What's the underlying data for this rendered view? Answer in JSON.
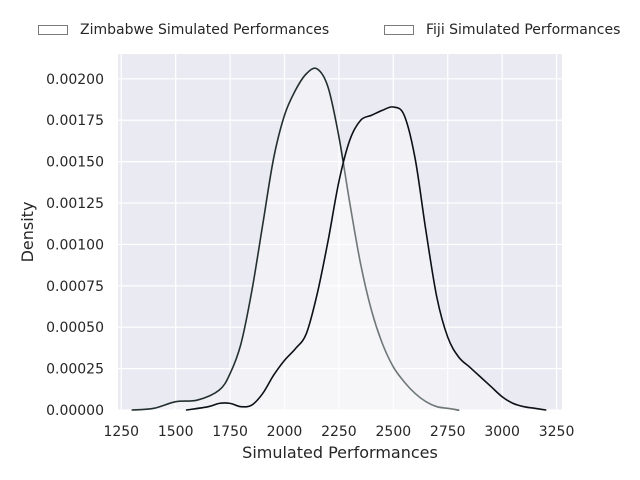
{
  "chart_data": {
    "type": "line",
    "title": "",
    "xlabel": "Simulated Performances",
    "ylabel": "Density",
    "xlim": [
      1235,
      3275
    ],
    "ylim": [
      0,
      0.00215
    ],
    "xticks": [
      1250,
      1500,
      1750,
      2000,
      2250,
      2500,
      2750,
      3000,
      3250
    ],
    "yticks": [
      0.0,
      0.00025,
      0.0005,
      0.00075,
      0.001,
      0.00125,
      0.0015,
      0.00175,
      0.002
    ],
    "xtick_labels": [
      "1250",
      "1500",
      "1750",
      "2000",
      "2250",
      "2500",
      "2750",
      "3000",
      "3250"
    ],
    "ytick_labels": [
      "0.00000",
      "0.00025",
      "0.00050",
      "0.00075",
      "0.00100",
      "0.00125",
      "0.00150",
      "0.00175",
      "0.00200"
    ],
    "grid": true,
    "legend_position": "top",
    "series": [
      {
        "name": "Zimbabwe Simulated Performances",
        "color": "#23302f",
        "x": [
          1300,
          1400,
          1500,
          1600,
          1700,
          1750,
          1800,
          1850,
          1900,
          1950,
          2000,
          2050,
          2100,
          2150,
          2200,
          2250,
          2300,
          2350,
          2400,
          2450,
          2500,
          2550,
          2600,
          2650,
          2700,
          2750,
          2800
        ],
        "y": [
          0.0,
          1e-05,
          5e-05,
          6e-05,
          0.00012,
          0.00022,
          0.0004,
          0.00072,
          0.00112,
          0.00152,
          0.00178,
          0.00193,
          0.00203,
          0.00206,
          0.00195,
          0.00165,
          0.00125,
          0.00088,
          0.0006,
          0.0004,
          0.00026,
          0.00017,
          0.0001,
          5e-05,
          2e-05,
          1e-05,
          0.0
        ]
      },
      {
        "name": "Fiji Simulated Performances",
        "color": "#0c1017",
        "x": [
          1550,
          1650,
          1700,
          1750,
          1800,
          1850,
          1900,
          1950,
          2000,
          2050,
          2100,
          2150,
          2200,
          2250,
          2300,
          2350,
          2400,
          2450,
          2500,
          2550,
          2600,
          2650,
          2700,
          2750,
          2800,
          2850,
          2900,
          2950,
          3000,
          3050,
          3100,
          3150,
          3200
        ],
        "y": [
          0.0,
          2e-05,
          4e-05,
          4e-05,
          2e-05,
          3e-05,
          0.0001,
          0.00021,
          0.0003,
          0.00037,
          0.00046,
          0.0007,
          0.00102,
          0.00138,
          0.00163,
          0.00175,
          0.00178,
          0.00181,
          0.00183,
          0.00178,
          0.00152,
          0.00108,
          0.00068,
          0.00044,
          0.00032,
          0.00026,
          0.0002,
          0.00014,
          8e-05,
          4e-05,
          2e-05,
          1e-05,
          0.0
        ]
      }
    ]
  }
}
